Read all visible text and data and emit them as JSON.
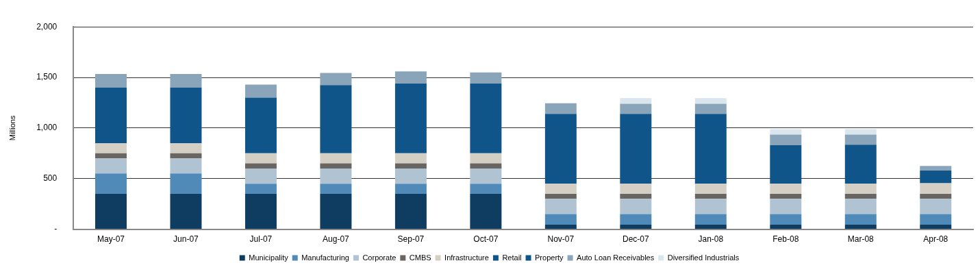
{
  "chart_data": {
    "type": "bar",
    "stacked": true,
    "ylabel": "Millions",
    "categories": [
      "May-07",
      "Jun-07",
      "Jul-07",
      "Aug-07",
      "Sep-07",
      "Oct-07",
      "Nov-07",
      "Dec-07",
      "Jan-08",
      "Feb-08",
      "Mar-08",
      "Apr-08"
    ],
    "series": [
      {
        "name": "Municipality",
        "color": "#0f3d62",
        "values": [
          350,
          350,
          350,
          350,
          350,
          350,
          45,
          45,
          45,
          45,
          45,
          45
        ]
      },
      {
        "name": "Manufacturing",
        "color": "#4f8ab8",
        "values": [
          200,
          200,
          100,
          100,
          100,
          100,
          105,
          105,
          105,
          105,
          105,
          105
        ]
      },
      {
        "name": "Corporate",
        "color": "#b0c3d3",
        "values": [
          150,
          150,
          150,
          150,
          150,
          150,
          150,
          150,
          150,
          150,
          150,
          150
        ]
      },
      {
        "name": "CMBS",
        "color": "#686562",
        "values": [
          50,
          50,
          50,
          50,
          50,
          50,
          50,
          50,
          50,
          50,
          50,
          50
        ]
      },
      {
        "name": "Infrastructure",
        "color": "#d3cfc4",
        "values": [
          100,
          100,
          100,
          100,
          100,
          100,
          100,
          100,
          100,
          100,
          100,
          105
        ]
      },
      {
        "name": "Retail",
        "color": "#0f5589",
        "values": [
          0,
          0,
          0,
          0,
          0,
          0,
          0,
          0,
          0,
          0,
          0,
          0
        ]
      },
      {
        "name": "Property",
        "color": "#0f5589",
        "values": [
          550,
          550,
          550,
          675,
          690,
          690,
          690,
          690,
          690,
          380,
          385,
          125
        ]
      },
      {
        "name": "Auto Loan Receivables",
        "color": "#8aa4b9",
        "values": [
          135,
          135,
          130,
          120,
          120,
          110,
          105,
          100,
          100,
          105,
          100,
          45
        ]
      },
      {
        "name": "Diversified Industrials",
        "color": "#d9e6ee",
        "values": [
          0,
          0,
          0,
          0,
          0,
          0,
          0,
          55,
          55,
          55,
          55,
          0
        ]
      }
    ],
    "ylim": [
      0,
      2000
    ],
    "yticks": [
      {
        "value": 0,
        "label": "-"
      },
      {
        "value": 500,
        "label": "500"
      },
      {
        "value": 1000,
        "label": "1,000"
      },
      {
        "value": 1500,
        "label": "1,500"
      },
      {
        "value": 2000,
        "label": "2,000"
      }
    ],
    "grid": "y",
    "legend": "bottom"
  }
}
